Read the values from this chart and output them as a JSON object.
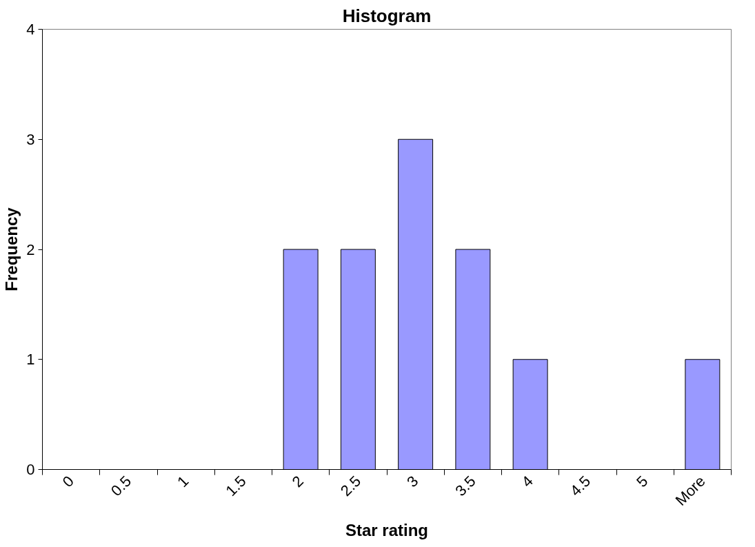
{
  "chart_data": {
    "type": "bar",
    "title": "Histogram",
    "xlabel": "Star rating",
    "ylabel": "Frequency",
    "categories": [
      "0",
      "0.5",
      "1",
      "1.5",
      "2",
      "2.5",
      "3",
      "3.5",
      "4",
      "4.5",
      "5",
      "More"
    ],
    "values": [
      0,
      0,
      0,
      0,
      2,
      2,
      3,
      2,
      1,
      0,
      0,
      1
    ],
    "color": "#9999ff",
    "ylim": [
      0,
      4
    ],
    "yticks": [
      0,
      1,
      2,
      3,
      4
    ],
    "grid": false
  }
}
